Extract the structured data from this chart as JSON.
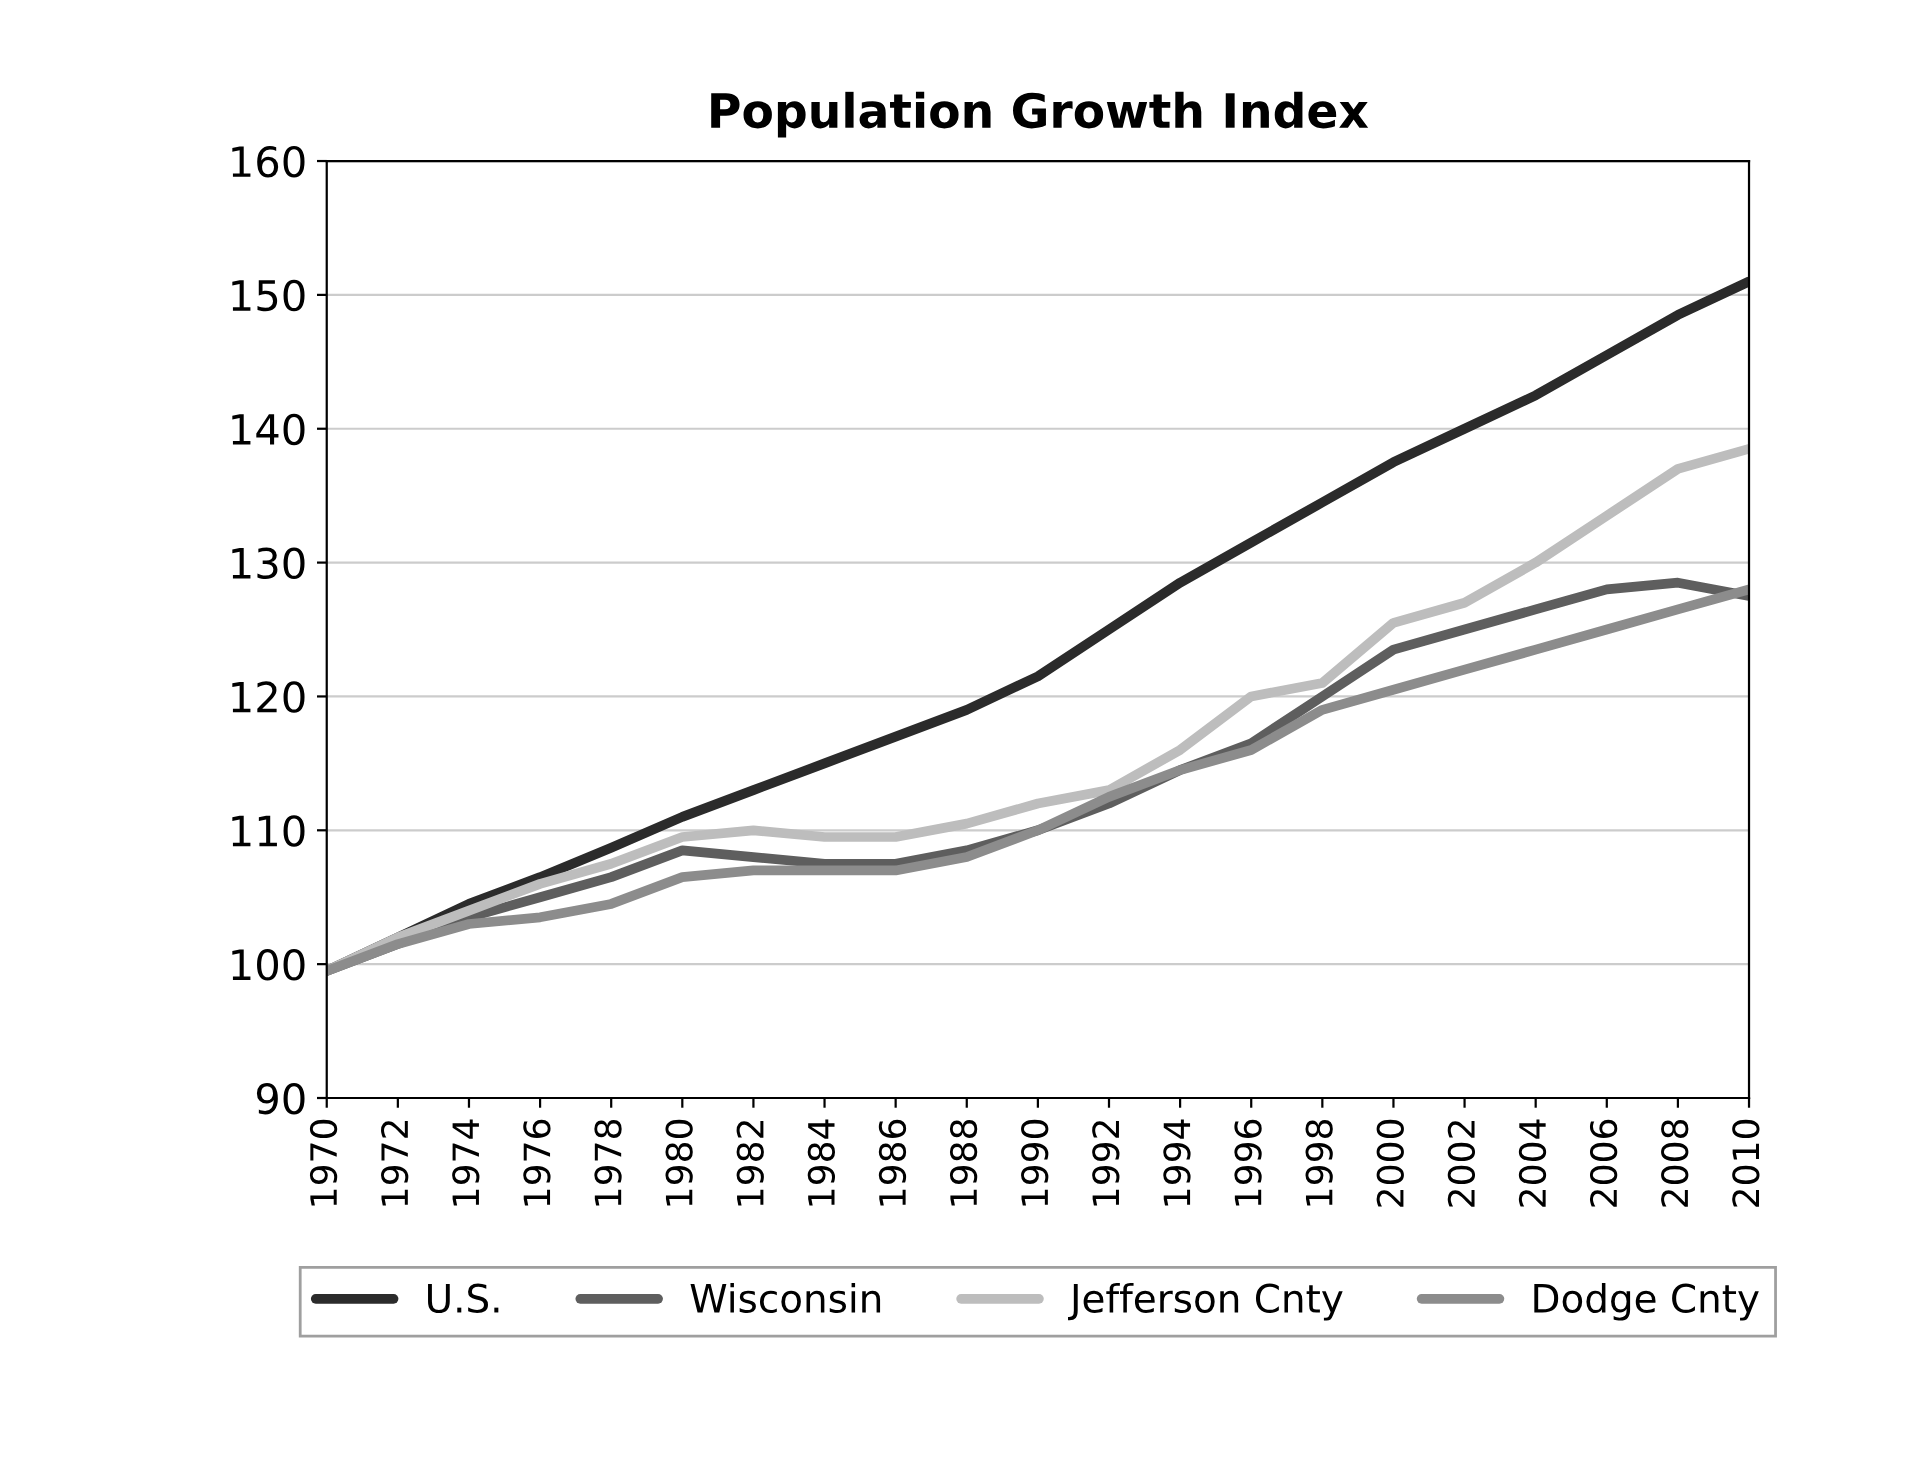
{
  "chart_data": {
    "type": "line",
    "title": "Population Growth Index",
    "x": [
      1970,
      1972,
      1974,
      1976,
      1978,
      1980,
      1982,
      1984,
      1986,
      1988,
      1990,
      1992,
      1994,
      1996,
      1998,
      2000,
      2002,
      2004,
      2006,
      2008,
      2010
    ],
    "series": [
      {
        "name": "U.S.",
        "color": "#2b2b2b",
        "values": [
          99.5,
          102,
          104.5,
          106.5,
          108.7,
          111,
          113,
          115,
          117,
          119,
          121.5,
          125,
          128.5,
          131.5,
          134.5,
          137.5,
          140,
          142.5,
          145.5,
          148.5,
          151
        ]
      },
      {
        "name": "Wisconsin",
        "color": "#5e5e5e",
        "values": [
          99.5,
          101.5,
          103.5,
          105,
          106.5,
          108.5,
          108,
          107.5,
          107.5,
          108.5,
          110,
          112,
          114.5,
          116.5,
          120,
          123.5,
          125,
          126.5,
          128,
          128.5,
          127.5
        ]
      },
      {
        "name": "Jefferson Cnty",
        "color": "#bdbdbd",
        "values": [
          99.5,
          102,
          104,
          106,
          107.5,
          109.5,
          110,
          109.5,
          109.5,
          110.5,
          112,
          113,
          116,
          120,
          121,
          125.5,
          127,
          130,
          133.5,
          137,
          138.5
        ]
      },
      {
        "name": "Dodge Cnty",
        "color": "#8c8c8c",
        "values": [
          99.5,
          101.5,
          103,
          103.5,
          104.5,
          106.5,
          107,
          107,
          107,
          108,
          110,
          112.5,
          114.5,
          116,
          119,
          120.5,
          122,
          123.5,
          125,
          126.5,
          128
        ]
      }
    ],
    "xlim": [
      1970,
      2010
    ],
    "xticks": [
      1970,
      1972,
      1974,
      1976,
      1978,
      1980,
      1982,
      1984,
      1986,
      1988,
      1990,
      1992,
      1994,
      1996,
      1998,
      2000,
      2002,
      2004,
      2006,
      2008,
      2010
    ],
    "ylim": [
      90,
      160
    ],
    "yticks": [
      90,
      100,
      110,
      120,
      130,
      140,
      150,
      160
    ],
    "grid": "y",
    "legend": "bottom",
    "marker": "none",
    "line_style": "solid"
  }
}
